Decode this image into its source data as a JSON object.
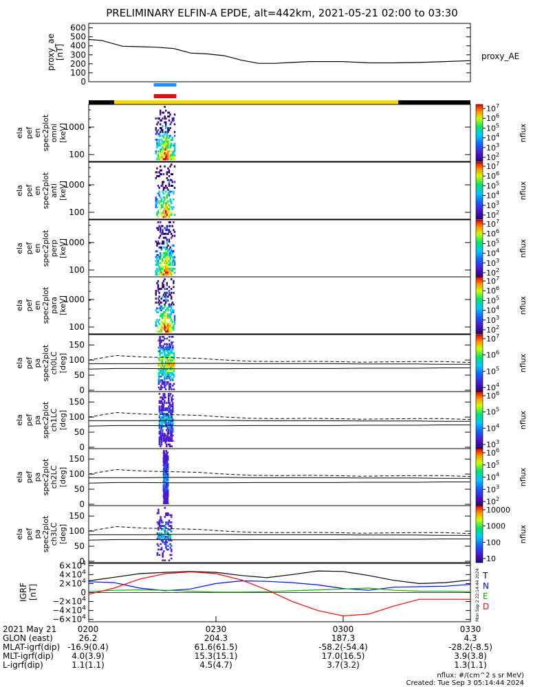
{
  "title": "PRELIMINARY ELFIN-A EPDE, alt=442km, 2021-05-21 02:00 to 03:30",
  "colors": {
    "fgm_bar": "#1e90ff",
    "epd_bar": "#e01010",
    "sci_zone": "#ffd700",
    "trace": "#000000",
    "grf_n": "#0000ff",
    "grf_t": "#000000",
    "grf_e": "#00b000",
    "grf_d": "#ff0000"
  },
  "panels": {
    "ae": {
      "label": [
        "proxy_ae",
        "[nT]"
      ],
      "right": "proxy_AE",
      "ticks": [
        "600",
        "500",
        "400",
        "300",
        "200",
        "100",
        "0"
      ]
    },
    "spec": [
      {
        "label": [
          "ela",
          "pef",
          "en",
          "spec2plot",
          "omni",
          "[keV]"
        ],
        "ticks": [
          "1000",
          "100"
        ],
        "cbar": [
          "10^7",
          "10^6",
          "10^5",
          "10^4",
          "10^3",
          "10^2"
        ],
        "cbar_label": "nflux"
      },
      {
        "label": [
          "ela",
          "pef",
          "en",
          "spec2plot",
          "anti",
          "[keV]"
        ],
        "ticks": [
          "1000",
          "100"
        ],
        "cbar": [
          "10^7",
          "10^6",
          "10^5",
          "10^4",
          "10^3",
          "10^2"
        ],
        "cbar_label": "nflux"
      },
      {
        "label": [
          "ela",
          "pef",
          "en",
          "spec2plot",
          "perp",
          "[keV]"
        ],
        "ticks": [
          "1000",
          "100"
        ],
        "cbar": [
          "10^7",
          "10^6",
          "10^5",
          "10^4",
          "10^3",
          "10^2"
        ],
        "cbar_label": "nflux"
      },
      {
        "label": [
          "ela",
          "pef",
          "en",
          "spec2plot",
          "para",
          "[keV]"
        ],
        "ticks": [
          "1000",
          "100"
        ],
        "cbar": [
          "10^7",
          "10^6",
          "10^5",
          "10^4",
          "10^3",
          "10^2"
        ],
        "cbar_label": "nflux"
      }
    ],
    "pa": [
      {
        "label": [
          "ela",
          "pef",
          "pa",
          "spec2plot",
          "ch0LC",
          "[deg]"
        ],
        "ticks": [
          "150",
          "100",
          "50",
          "0"
        ],
        "cbar": [
          "10^7",
          "10^6",
          "10^5",
          "10^4"
        ],
        "cbar_label": "nflux"
      },
      {
        "label": [
          "ela",
          "pef",
          "pa",
          "spec2plot",
          "ch1LC",
          "[deg]"
        ],
        "ticks": [
          "150",
          "100",
          "50",
          "0"
        ],
        "cbar": [
          "10^6",
          "10^5",
          "10^4",
          "10^3"
        ],
        "cbar_label": "nflux"
      },
      {
        "label": [
          "ela",
          "pef",
          "pa",
          "spec2plot",
          "ch2LC",
          "[deg]"
        ],
        "ticks": [
          "150",
          "100",
          "50",
          "0"
        ],
        "cbar": [
          "10^6",
          "10^5",
          "10^4",
          "10^3",
          "10^2"
        ],
        "cbar_label": "nflux"
      },
      {
        "label": [
          "ela",
          "pef",
          "pa",
          "spec2plot",
          "ch3LC",
          "[deg]"
        ],
        "ticks": [
          "150",
          "100",
          "50",
          "0"
        ],
        "cbar": [
          "10000",
          "1000",
          "100",
          "10"
        ],
        "cbar_label": "nflux"
      }
    ],
    "grf": {
      "label": [
        "IGRF",
        "[nT]"
      ],
      "ticks": [
        "6×10^4",
        "4×10^4",
        "2×10^4",
        "0",
        "−2×10^4",
        "−4×10^4",
        "−6×10^4"
      ],
      "legend": [
        "T",
        "N",
        "E",
        "D"
      ],
      "side_text": "Mon Sep 2 22:14:44 2024"
    }
  },
  "footer": {
    "rows": [
      {
        "label": "2021 May 21",
        "values": [
          "0200",
          "0230",
          "0300",
          "0330"
        ]
      },
      {
        "label": "GLON (east)",
        "values": [
          "26.2",
          "204.3",
          "187.3",
          "4.3"
        ]
      },
      {
        "label": "MLAT-igrf(dip)",
        "values": [
          "-16.9(0.4)",
          "61.6(61.5)",
          "-58.2(-54.4)",
          "-28.2(-8.5)"
        ]
      },
      {
        "label": "MLT-igrf(dip)",
        "values": [
          "4.0(3.9)",
          "15.3(15.1)",
          "17.0(16.5)",
          "3.9(3.8)"
        ]
      },
      {
        "label": "L-igrf(dip)",
        "values": [
          "1.1(1.1)",
          "4.5(4.7)",
          "3.7(3.2)",
          "1.3(1.1)"
        ]
      }
    ],
    "units": "nflux: #/(cm^2 s sr MeV)",
    "created": "Created: Tue Sep  3 05:14:44 2024"
  },
  "chart_data": {
    "type": "line",
    "title": "PRELIMINARY ELFIN-A EPDE, alt=442km, 2021-05-21 02:00 to 03:30",
    "x_ticks": [
      "0200",
      "0230",
      "0300",
      "0330"
    ],
    "x_minutes": [
      0,
      30,
      60,
      90
    ],
    "proxy_ae": {
      "ylabel": "proxy_ae [nT]",
      "ylim": [
        0,
        650
      ],
      "x": [
        0,
        3,
        8,
        12,
        16,
        20,
        24,
        28,
        32,
        36,
        40,
        44,
        48,
        52,
        56,
        60,
        66,
        72,
        78,
        84,
        90
      ],
      "y": [
        470,
        460,
        395,
        390,
        385,
        370,
        320,
        310,
        290,
        240,
        205,
        205,
        215,
        225,
        225,
        225,
        210,
        210,
        215,
        225,
        235
      ]
    },
    "science_zone": {
      "start_min": 6,
      "end_min": 73
    },
    "collection_window": {
      "start_min": 15.5,
      "end_min": 20.5
    },
    "igrf": {
      "ylabel": "IGRF [nT]",
      "ylim": [
        -65000,
        65000
      ],
      "x": [
        0,
        6,
        12,
        18,
        24,
        30,
        36,
        42,
        48,
        54,
        60,
        66,
        72,
        78,
        84,
        90
      ],
      "series": [
        {
          "name": "T",
          "values": [
            26000,
            34000,
            42000,
            45000,
            47000,
            45000,
            38000,
            33000,
            40000,
            48000,
            47000,
            38000,
            27000,
            20000,
            22000,
            28000
          ]
        },
        {
          "name": "N",
          "values": [
            24000,
            22000,
            10000,
            4000,
            8000,
            20000,
            26000,
            25000,
            22000,
            17000,
            9000,
            5000,
            12000,
            13000,
            14000,
            18000
          ]
        },
        {
          "name": "E",
          "values": [
            2000,
            5000,
            6000,
            5000,
            3000,
            1000,
            1000,
            2000,
            4000,
            6000,
            8000,
            10000,
            5000,
            3000,
            3000,
            2000
          ]
        },
        {
          "name": "D",
          "values": [
            -4000,
            10000,
            30000,
            42000,
            46000,
            42000,
            28000,
            6000,
            -20000,
            -40000,
            -52000,
            -48000,
            -30000,
            -15000,
            -15000,
            -15000
          ]
        }
      ]
    },
    "pitch_angle_reference": {
      "dashed": [
        100,
        115,
        110,
        108,
        106,
        100,
        96,
        95,
        96,
        95,
        93,
        94,
        95,
        95,
        92
      ],
      "upper_solid": [
        88,
        88,
        88,
        89,
        89,
        89,
        88,
        88,
        88,
        88,
        87,
        87,
        87,
        86,
        86
      ],
      "lower_solid": [
        70,
        72,
        72,
        71,
        71,
        71,
        72,
        72,
        72,
        72,
        73,
        73,
        73,
        74,
        74
      ]
    }
  }
}
